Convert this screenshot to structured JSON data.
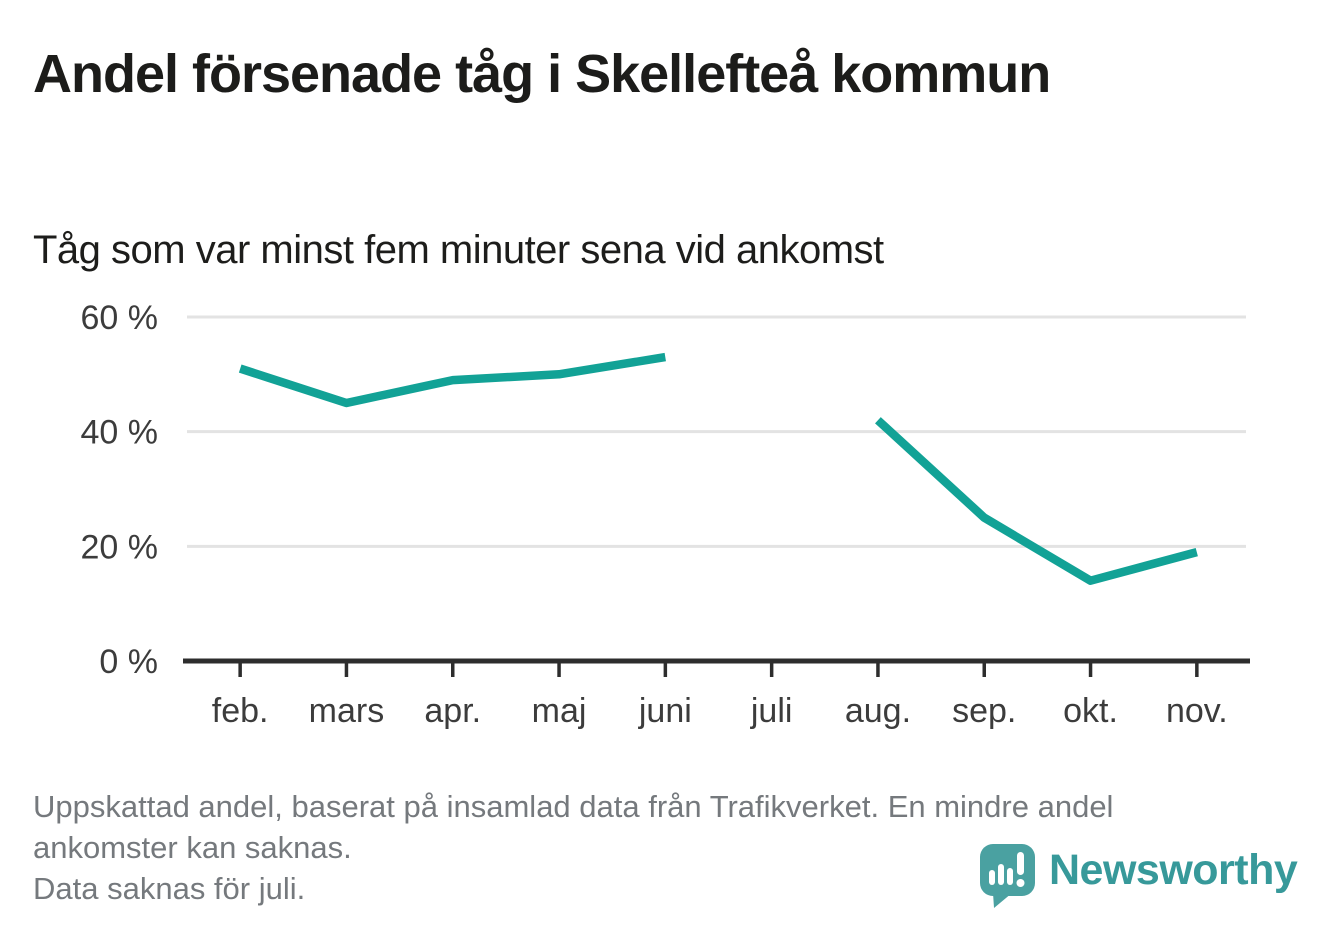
{
  "header": {
    "title": "Andel försenade tåg i Skellefteå kommun",
    "subtitle": "Tåg som var minst fem minuter sena vid ankomst"
  },
  "chart_data": {
    "type": "line",
    "title": "Andel försenade tåg i Skellefteå kommun",
    "subtitle": "Tåg som var minst fem minuter sena vid ankomst",
    "categories": [
      "feb.",
      "mars",
      "apr.",
      "maj",
      "juni",
      "juli",
      "aug.",
      "sep.",
      "okt.",
      "nov."
    ],
    "values": [
      51,
      45,
      49,
      50,
      53,
      null,
      42,
      25,
      14,
      19
    ],
    "unit": "percent",
    "ylim": [
      0,
      60
    ],
    "yticks": [
      0,
      20,
      40,
      60
    ],
    "ytick_labels": [
      "0 %",
      "20 %",
      "40 %",
      "60 %"
    ],
    "grid": true,
    "legend_position": "none",
    "line_color": "#12a296",
    "grid_color": "#e3e3e3",
    "axis_color": "#2d2d2d",
    "missing_data_note": "Data saknas för juli."
  },
  "footer": {
    "note1": "Uppskattad andel, baserat på insamlad data från Trafikverket. En mindre andel ankomster kan saknas.",
    "note2": "Data saknas för juli.",
    "brand": "Newsworthy"
  },
  "colors": {
    "accent_teal": "#12a296",
    "logo_icon": "#4aa1a1",
    "logo_text": "#37999a",
    "text_dark": "#1c1c1a",
    "text_muted": "#75797d"
  }
}
